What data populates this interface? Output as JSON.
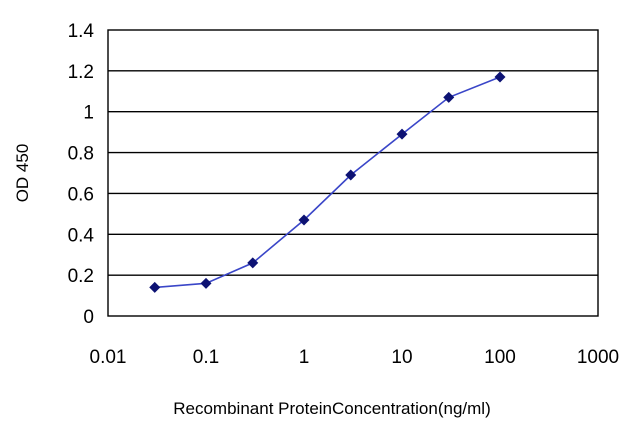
{
  "chart_data": {
    "type": "line",
    "title": "",
    "xlabel": "Recombinant ProteinConcentration(ng/ml)",
    "ylabel": "OD 450",
    "x_scale": "log",
    "xlim": [
      0.01,
      1000
    ],
    "ylim": [
      0,
      1.4
    ],
    "x_ticks": [
      0.01,
      0.1,
      1,
      10,
      100,
      1000
    ],
    "x_tick_labels": [
      "0.01",
      "0.1",
      "1",
      "10",
      "100",
      "1000"
    ],
    "y_ticks": [
      0,
      0.2,
      0.4,
      0.6,
      0.8,
      1,
      1.2,
      1.4
    ],
    "y_tick_labels": [
      "0",
      "0.2",
      "0.4",
      "0.6",
      "0.8",
      "1",
      "1.2",
      "1.4"
    ],
    "grid": "horizontal",
    "legend": "none",
    "series": [
      {
        "color": "#3a46c8",
        "marker_color": "#0d1273",
        "marker": "diamond",
        "x": [
          0.03,
          0.1,
          0.3,
          1,
          3,
          10,
          30,
          100
        ],
        "y": [
          0.14,
          0.16,
          0.26,
          0.47,
          0.69,
          0.89,
          1.07,
          1.17
        ]
      }
    ]
  }
}
